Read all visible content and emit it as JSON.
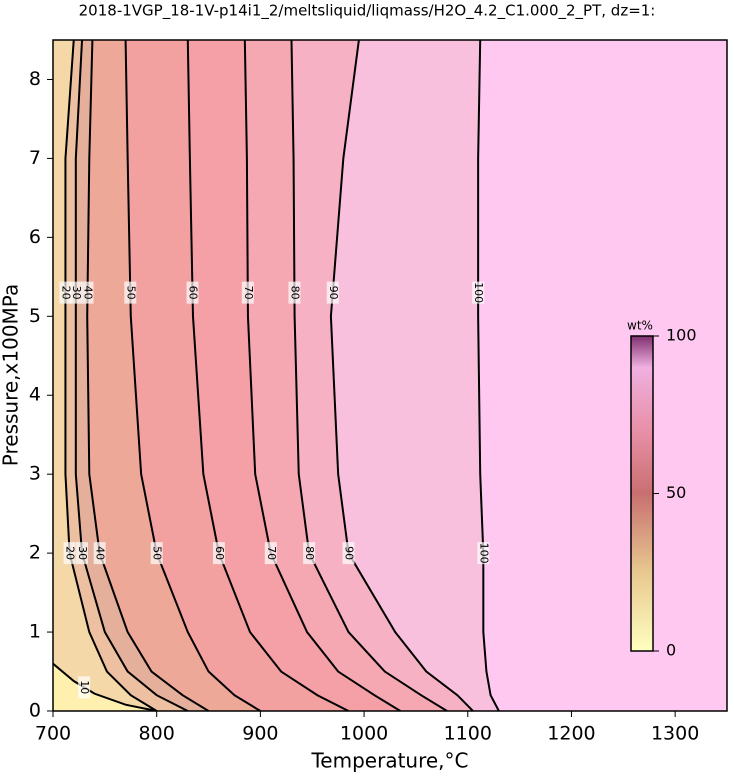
{
  "chart_data": {
    "type": "contour",
    "title": "2018-1VGP_18-1V-p14i1_2/meltsliquid/liqmass/H2O_4.2_C1.000_2_PT, dz=1:",
    "xlabel": "Temperature,°C",
    "ylabel": "Pressure,x100MPa",
    "xlim": [
      700,
      1350
    ],
    "ylim": [
      0,
      8.5
    ],
    "xticks": [
      700,
      800,
      900,
      1000,
      1100,
      1200,
      1300
    ],
    "yticks": [
      0,
      1,
      2,
      3,
      4,
      5,
      6,
      7,
      8
    ],
    "grid": true,
    "contours": [
      {
        "level": 100,
        "x": [
          1112,
          1110,
          1110,
          1112,
          1115,
          1115,
          1118,
          1122,
          1130
        ],
        "y": [
          8.5,
          7,
          5,
          3,
          2,
          1,
          0.5,
          0.2,
          0
        ]
      },
      {
        "level": 90,
        "x": [
          995,
          980,
          968,
          975,
          985,
          1030,
          1060,
          1090,
          1105
        ],
        "y": [
          8.5,
          7,
          5,
          3,
          2,
          1,
          0.5,
          0.2,
          0
        ]
      },
      {
        "level": 80,
        "x": [
          930,
          932,
          933,
          937,
          947,
          985,
          1020,
          1055,
          1080
        ],
        "y": [
          8.5,
          7,
          5,
          3,
          2,
          1,
          0.5,
          0.2,
          0
        ]
      },
      {
        "level": 70,
        "x": [
          885,
          887,
          888,
          895,
          910,
          945,
          975,
          1010,
          1035
        ],
        "y": [
          8.5,
          7,
          5,
          3,
          2,
          1,
          0.5,
          0.2,
          0
        ]
      },
      {
        "level": 60,
        "x": [
          830,
          832,
          835,
          845,
          860,
          890,
          920,
          955,
          985
        ],
        "y": [
          8.5,
          7,
          5,
          3,
          2,
          1,
          0.5,
          0.2,
          0
        ]
      },
      {
        "level": 50,
        "x": [
          770,
          772,
          775,
          785,
          800,
          830,
          850,
          875,
          900
        ],
        "y": [
          8.5,
          7,
          5,
          3,
          2,
          1,
          0.5,
          0.2,
          0
        ]
      },
      {
        "level": 40,
        "x": [
          738,
          735,
          733,
          735,
          745,
          772,
          795,
          825,
          850
        ],
        "y": [
          8.5,
          7,
          5,
          3,
          2,
          1,
          0.5,
          0.2,
          0
        ]
      },
      {
        "level": 30,
        "x": [
          728,
          722,
          722,
          722,
          728,
          750,
          772,
          800,
          830
        ],
        "y": [
          8.5,
          7,
          5,
          3,
          2,
          1,
          0.5,
          0.2,
          0
        ]
      },
      {
        "level": 20,
        "x": [
          720,
          712,
          712,
          712,
          716,
          735,
          752,
          775,
          800
        ],
        "y": [
          8.5,
          7,
          5,
          3,
          2,
          1,
          0.5,
          0.2,
          0
        ]
      },
      {
        "level": 10,
        "x": [
          700,
          720,
          740,
          770,
          800
        ],
        "y": [
          0.6,
          0.38,
          0.22,
          0.08,
          0
        ]
      }
    ],
    "colorbar": {
      "label": "wt%",
      "lim": [
        0,
        100
      ],
      "ticks": [
        0,
        50,
        100
      ]
    }
  }
}
